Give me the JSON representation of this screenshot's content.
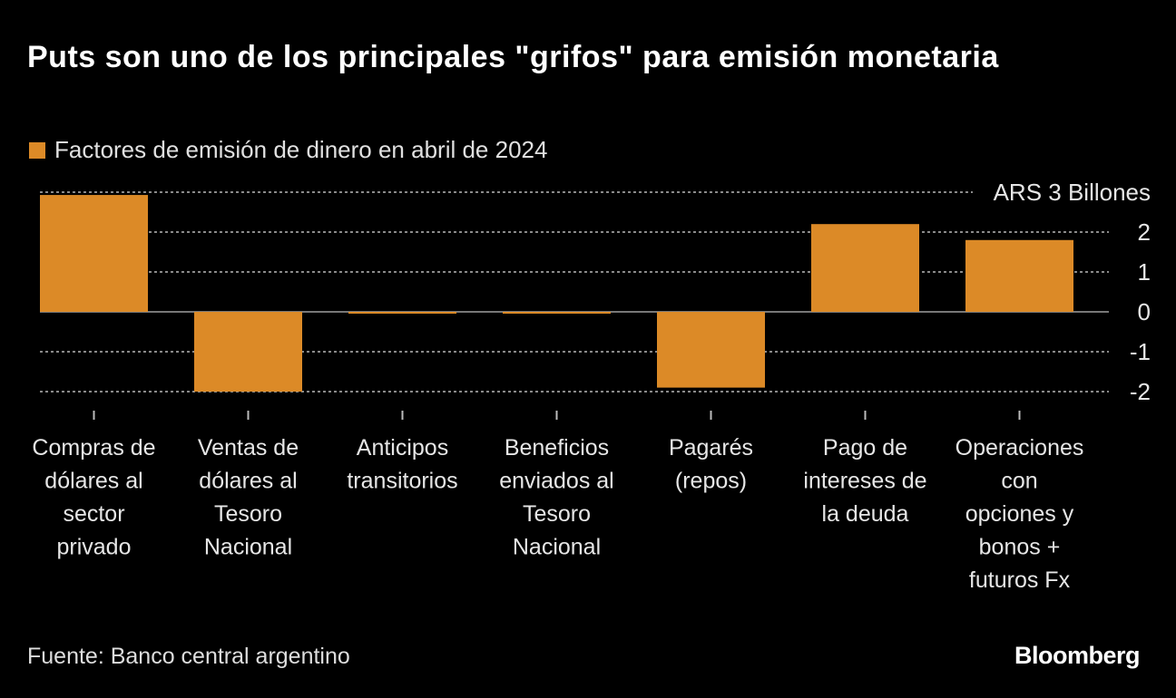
{
  "title": "Puts son uno de los principales \"grifos\" para emisión monetaria",
  "source": "Fuente: Banco central argentino",
  "logo": "Bloomberg",
  "colors": {
    "bar": "#dc8a27",
    "background": "#000000",
    "grid": "#8a8a8a"
  },
  "chart_data": {
    "type": "bar",
    "title": "Puts son uno de los principales \"grifos\" para emisión monetaria",
    "legend": [
      "Factores de emisión de dinero en abril de 2024"
    ],
    "legend_position": "top-left",
    "unit_label": "ARS 3 Billones",
    "categories": [
      [
        "Compras de",
        "dólares al",
        "sector",
        "privado"
      ],
      [
        "Ventas de",
        "dólares al",
        "Tesoro",
        "Nacional"
      ],
      [
        "Anticipos",
        "transitorios"
      ],
      [
        "Beneficios",
        "enviados al",
        "Tesoro",
        "Nacional"
      ],
      [
        "Pagarés",
        "(repos)"
      ],
      [
        "Pago de",
        "intereses de",
        "la deuda"
      ],
      [
        "Operaciones",
        "con",
        "opciones y",
        "bonos +",
        "futuros Fx"
      ]
    ],
    "series": [
      {
        "name": "Factores de emisión de dinero en abril de 2024",
        "values": [
          2.93,
          -2.0,
          -0.03,
          -0.03,
          -1.9,
          2.2,
          1.8
        ]
      }
    ],
    "yticks": [
      3,
      2,
      1,
      0,
      -1,
      -2
    ],
    "ytick_labels": [
      "ARS 3 Billones",
      "2",
      "1",
      "0",
      "-1",
      "-2"
    ],
    "ylim": [
      -2,
      3
    ],
    "grid": true
  }
}
